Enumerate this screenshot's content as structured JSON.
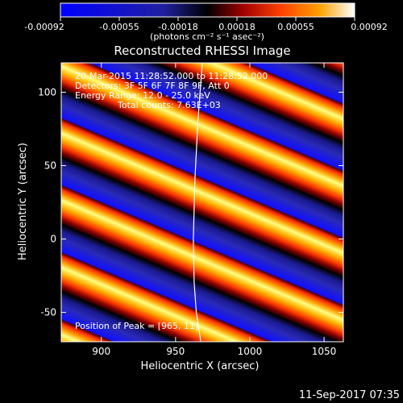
{
  "colorbar": {
    "ticks": [
      "-0.00092",
      "-0.00055",
      "-0.00018",
      "0.00018",
      "0.00055",
      "0.00092"
    ],
    "tick_values": [
      -0.00092,
      -0.00055,
      -0.00018,
      0.00018,
      0.00055,
      0.00092
    ],
    "units": "(photons cm⁻² s⁻¹ asec⁻²)",
    "colors": [
      "#0000ff",
      "#2020a0",
      "#000000",
      "#a00000",
      "#ff4000",
      "#ffa000",
      "#ffffff"
    ]
  },
  "footer": {
    "timestamp": "11-Sep-2017 07:35"
  },
  "info": {
    "time_range": "20-Mar-2015 11:28:52.000 to 11:28:52.000",
    "detectors": "Detectors: 3F 5F 6F 7F 8F 9F, Att 0",
    "energy": "Energy Range: 12.0 - 25.0 keV",
    "counts": "Total counts: 7.63E+03",
    "peak": "Position of Peak = [965, 11]"
  },
  "chart_data": {
    "type": "heatmap",
    "title": "Reconstructed RHESSI Image",
    "xlabel": "Heliocentric X (arcsec)",
    "ylabel": "Heliocentric Y (arcsec)",
    "xlim": [
      873,
      1063
    ],
    "ylim": [
      -70,
      120
    ],
    "xticks": [
      900,
      950,
      1000,
      1050
    ],
    "yticks": [
      -50,
      0,
      50,
      100
    ],
    "fringe_slope_dy_per_dx": -0.42,
    "fringe_period_arcsec": 42,
    "limb_curve": {
      "x": [
        968,
        965,
        963,
        962,
        962.5,
        964,
        967
      ],
      "y": [
        120,
        80,
        40,
        0,
        -30,
        -50,
        -70
      ]
    },
    "peak": {
      "x": 965,
      "y": 11
    }
  }
}
